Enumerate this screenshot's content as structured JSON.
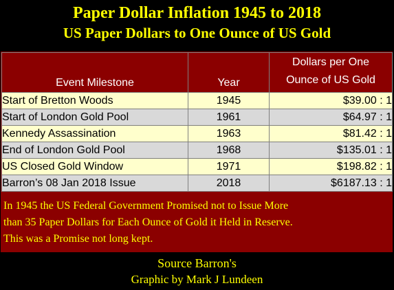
{
  "title": "Paper Dollar Inflation 1945 to 2018",
  "subtitle": "US Paper Dollars to One Ounce of US Gold",
  "chart_data": {
    "type": "table",
    "columns": [
      "Event Milestone",
      "Year",
      "Dollars per One",
      "Ounce of US Gold"
    ],
    "rows": [
      {
        "event": "Start of Bretton Woods",
        "year": "1945",
        "dollars": "$39.00 : 1",
        "value": 39.0
      },
      {
        "event": "Start of London Gold Pool",
        "year": "1961",
        "dollars": "$64.97 : 1",
        "value": 64.97
      },
      {
        "event": "Kennedy Assassination",
        "year": "1963",
        "dollars": "$81.42 : 1",
        "value": 81.42
      },
      {
        "event": "End of London Gold Pool",
        "year": "1968",
        "dollars": "$135.01 : 1",
        "value": 135.01
      },
      {
        "event": "US Closed Gold Window",
        "year": "1971",
        "dollars": "$198.82 : 1",
        "value": 198.82
      },
      {
        "event": "Barron’s 08 Jan 2018 Issue",
        "year": "2018",
        "dollars": "$6187.13 : 1",
        "value": 6187.13
      }
    ]
  },
  "note_lines": [
    "In 1945 the US Federal Government Promised not to Issue More",
    "than 35 Paper Dollars for Each Ounce of Gold it Held in Reserve.",
    "This was a Promise not long kept."
  ],
  "footer": {
    "source": "Source Barron's",
    "credit": "Graphic by Mark J Lundeen"
  },
  "colors": {
    "background": "#000000",
    "title_text": "#ffff00",
    "panel": "#8b0000",
    "header_text": "#ffffff",
    "row_odd": "#ffffcc",
    "row_even": "#d9d9d9"
  }
}
